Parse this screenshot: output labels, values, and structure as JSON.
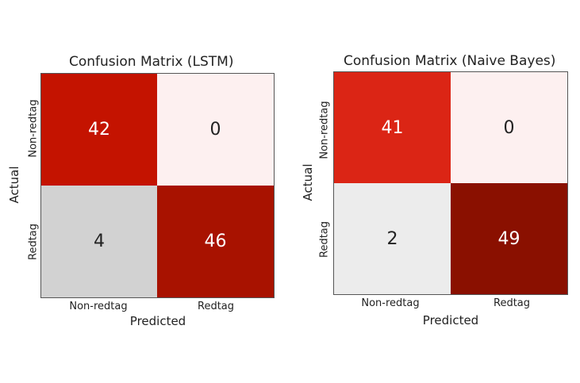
{
  "chart_data": [
    {
      "type": "heatmap",
      "title": "Confusion Matrix (LSTM)",
      "xlabel": "Predicted",
      "ylabel": "Actual",
      "x_categories": [
        "Non-redtag",
        "Redtag"
      ],
      "y_categories": [
        "Non-redtag",
        "Redtag"
      ],
      "values": [
        [
          42,
          0
        ],
        [
          4,
          46
        ]
      ],
      "cell_colors": [
        [
          "#c41300",
          "#fdf0f0"
        ],
        [
          "#d2d2d2",
          "#a81200"
        ]
      ],
      "text_colors": [
        [
          "#ffffff",
          "#222222"
        ],
        [
          "#222222",
          "#ffffff"
        ]
      ]
    },
    {
      "type": "heatmap",
      "title": "Confusion Matrix (Naive Bayes)",
      "xlabel": "Predicted",
      "ylabel": "Actual",
      "x_categories": [
        "Non-redtag",
        "Redtag"
      ],
      "y_categories": [
        "Non-redtag",
        "Redtag"
      ],
      "values": [
        [
          41,
          0
        ],
        [
          2,
          49
        ]
      ],
      "cell_colors": [
        [
          "#db2515",
          "#fdf0f0"
        ],
        [
          "#ececec",
          "#8a1000"
        ]
      ],
      "text_colors": [
        [
          "#ffffff",
          "#222222"
        ],
        [
          "#222222",
          "#ffffff"
        ]
      ]
    }
  ]
}
